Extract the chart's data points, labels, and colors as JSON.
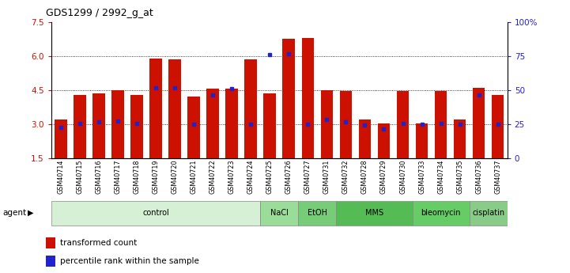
{
  "title": "GDS1299 / 2992_g_at",
  "samples": [
    "GSM40714",
    "GSM40715",
    "GSM40716",
    "GSM40717",
    "GSM40718",
    "GSM40719",
    "GSM40720",
    "GSM40721",
    "GSM40722",
    "GSM40723",
    "GSM40724",
    "GSM40725",
    "GSM40726",
    "GSM40727",
    "GSM40731",
    "GSM40732",
    "GSM40728",
    "GSM40729",
    "GSM40730",
    "GSM40733",
    "GSM40734",
    "GSM40735",
    "GSM40736",
    "GSM40737"
  ],
  "bar_values": [
    3.2,
    4.3,
    4.35,
    4.5,
    4.3,
    5.9,
    5.85,
    4.2,
    4.55,
    4.55,
    5.85,
    4.35,
    6.75,
    6.8,
    4.5,
    4.45,
    3.2,
    3.05,
    4.45,
    3.05,
    4.45,
    3.2,
    4.6,
    4.3
  ],
  "blue_values": [
    2.85,
    3.05,
    3.1,
    3.15,
    3.02,
    4.6,
    4.6,
    3.0,
    4.3,
    4.55,
    3.0,
    6.05,
    6.1,
    3.0,
    3.2,
    3.1,
    2.95,
    2.8,
    3.05,
    3.0,
    3.05,
    3.0,
    4.3,
    3.0
  ],
  "agents": [
    {
      "label": "control",
      "start": 0,
      "end": 11
    },
    {
      "label": "NaCl",
      "start": 11,
      "end": 13
    },
    {
      "label": "EtOH",
      "start": 13,
      "end": 15
    },
    {
      "label": "MMS",
      "start": 15,
      "end": 19
    },
    {
      "label": "bleomycin",
      "start": 19,
      "end": 22
    },
    {
      "label": "cisplatin",
      "start": 22,
      "end": 24
    }
  ],
  "agent_colors": [
    "#d6f0d6",
    "#99dd99",
    "#77cc77",
    "#55bb55",
    "#66cc66",
    "#88cc88"
  ],
  "ylim": [
    1.5,
    7.5
  ],
  "yticks": [
    1.5,
    3.0,
    4.5,
    6.0,
    7.5
  ],
  "right_yticks": [
    0,
    25,
    50,
    75,
    100
  ],
  "right_ytick_labels": [
    "0",
    "25",
    "50",
    "75",
    "100%"
  ],
  "bar_color": "#cc1100",
  "blue_color": "#2222cc",
  "left_tick_color": "#cc1100",
  "right_tick_color": "#2222cc",
  "grid_yticks": [
    3.0,
    4.5,
    6.0
  ]
}
